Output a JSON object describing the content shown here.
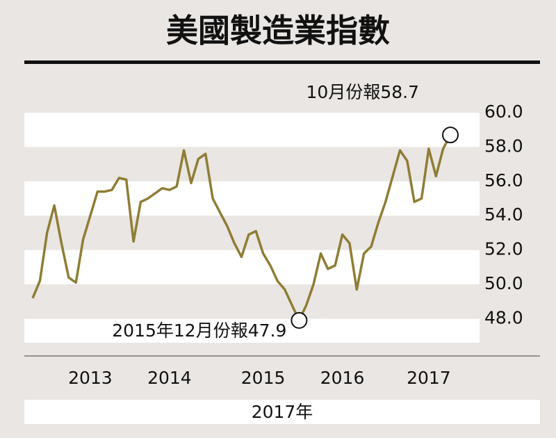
{
  "chart_data": {
    "type": "line",
    "title": "美國製造業指數",
    "annotations": {
      "low": "2015年12月份報47.9",
      "last": "10月份報58.7"
    },
    "footer": "2017年",
    "categories": [
      null,
      null,
      null,
      null,
      null,
      null,
      null,
      null,
      "2013",
      null,
      null,
      null,
      null,
      null,
      null,
      null,
      null,
      null,
      null,
      "2014",
      null,
      null,
      null,
      null,
      null,
      null,
      null,
      null,
      null,
      null,
      null,
      null,
      "2015",
      null,
      null,
      null,
      null,
      null,
      null,
      null,
      null,
      null,
      null,
      "2016",
      null,
      null,
      null,
      null,
      null,
      null,
      null,
      null,
      null,
      null,
      null,
      "2017",
      null,
      null,
      null
    ],
    "series": [
      {
        "color": "#8f7d34",
        "values": [
          49.2,
          50.2,
          53.0,
          54.6,
          52.4,
          50.4,
          50.1,
          52.6,
          54.0,
          55.4,
          55.4,
          55.5,
          56.2,
          56.1,
          52.5,
          54.8,
          55.0,
          55.3,
          55.6,
          55.5,
          55.7,
          57.8,
          55.9,
          57.3,
          57.6,
          55.0,
          54.2,
          53.4,
          52.4,
          51.6,
          52.9,
          53.1,
          51.8,
          51.1,
          50.2,
          49.7,
          48.8,
          47.9,
          48.8,
          50.0,
          51.8,
          50.9,
          51.1,
          52.9,
          52.4,
          49.7,
          51.8,
          52.2,
          53.6,
          54.8,
          56.3,
          57.8,
          57.2,
          54.8,
          55.0,
          57.9,
          56.3,
          57.9,
          58.7
        ]
      }
    ],
    "ylim": [
      46.6,
      60.0
    ],
    "yticks": [
      {
        "value": 60,
        "label": "60.0"
      },
      {
        "value": 58,
        "label": "58.0"
      },
      {
        "value": 56,
        "label": "56.0"
      },
      {
        "value": 54,
        "label": "54.0"
      },
      {
        "value": 52,
        "label": "52.0"
      },
      {
        "value": 50,
        "label": "50.0"
      },
      {
        "value": 48,
        "label": "48.0"
      }
    ],
    "grid": "bands"
  }
}
